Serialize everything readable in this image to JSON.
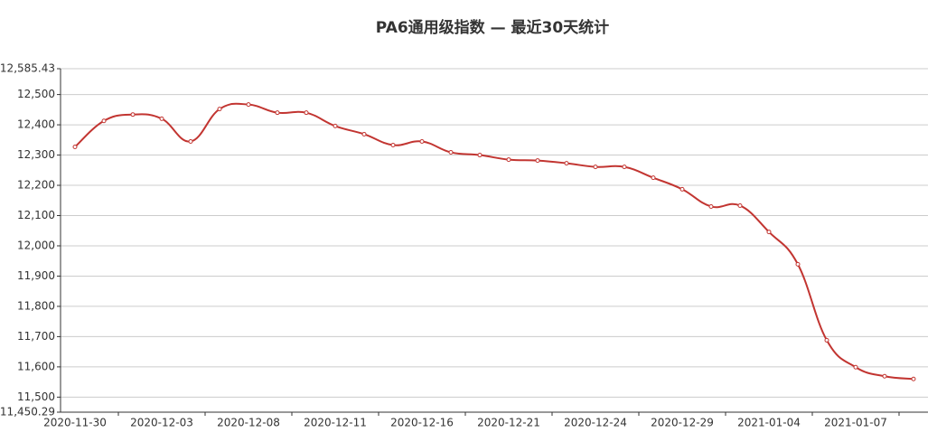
{
  "chart_data": {
    "type": "line",
    "title": "PA6通用级指数   —   最近30天统计",
    "categories": [
      "2020-11-30",
      null,
      null,
      "2020-12-03",
      null,
      null,
      "2020-12-08",
      null,
      null,
      "2020-12-11",
      null,
      null,
      "2020-12-16",
      null,
      null,
      "2020-12-21",
      null,
      null,
      "2020-12-24",
      null,
      null,
      "2020-12-29",
      null,
      null,
      "2021-01-04",
      null,
      null,
      "2021-01-07",
      null,
      null
    ],
    "series": [
      {
        "name": "PA6通用级指数",
        "color": "#c23531",
        "values": [
          12327,
          12413,
          12434,
          12420,
          12345,
          12452,
          12467,
          12440,
          12440,
          12396,
          12369,
          12333,
          12345,
          12309,
          12300,
          12285,
          12282,
          12273,
          12261,
          12261,
          12225,
          12187,
          12130,
          12133,
          12046,
          11939,
          11688,
          11599,
          11569,
          11560
        ]
      }
    ],
    "ylim": [
      11450.29,
      12585.43
    ],
    "yticks": [
      {
        "value": 11450.29,
        "label": "11,450.29"
      },
      {
        "value": 11500,
        "label": "11,500"
      },
      {
        "value": 11600,
        "label": "11,600"
      },
      {
        "value": 11700,
        "label": "11,700"
      },
      {
        "value": 11800,
        "label": "11,800"
      },
      {
        "value": 11900,
        "label": "11,900"
      },
      {
        "value": 12000,
        "label": "12,000"
      },
      {
        "value": 12100,
        "label": "12,100"
      },
      {
        "value": 12200,
        "label": "12,200"
      },
      {
        "value": 12300,
        "label": "12,300"
      },
      {
        "value": 12400,
        "label": "12,400"
      },
      {
        "value": 12500,
        "label": "12,500"
      },
      {
        "value": 12585.43,
        "label": "12,585.43"
      }
    ],
    "grid": true
  }
}
